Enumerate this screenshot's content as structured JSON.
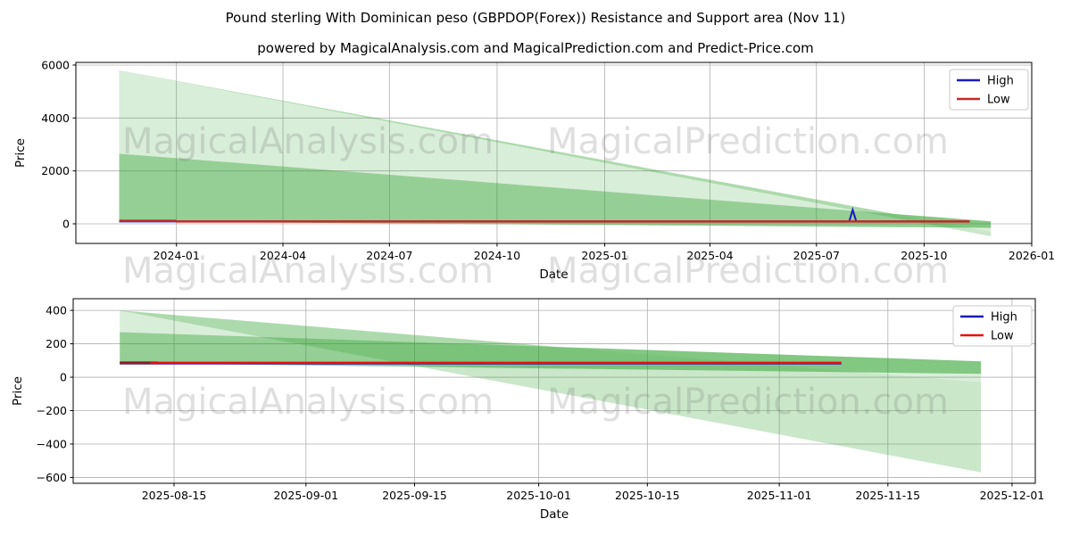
{
  "header": {
    "title": "Pound sterling With Dominican peso (GBPDOP(Forex)) Resistance and Support area (Nov 11)",
    "subtitle": "powered by MagicalAnalysis.com and MagicalPrediction.com and Predict-Price.com"
  },
  "watermark": {
    "left": "MagicalAnalysis.com",
    "right": "MagicalPrediction.com"
  },
  "colors": {
    "band_green": "#2ca02c",
    "grid": "#b0b0b0",
    "spine": "#000000",
    "high_blue": "#1a1abd",
    "low_red_top": "#c62828",
    "low_red_bottom": "#e8100f",
    "low_start_maroon": "#8b2121"
  },
  "chart_data": [
    {
      "type": "area",
      "xlabel": "Date",
      "ylabel": "Price",
      "grid": true,
      "legend": {
        "position": "upper right",
        "entries": [
          {
            "label": "High",
            "color": "#1a1abd"
          },
          {
            "label": "Low",
            "color": "#c62828"
          }
        ]
      },
      "xlim": [
        "2023-10-07",
        "2026-01-01"
      ],
      "ylim": [
        -741,
        6100
      ],
      "x_ticks": [
        {
          "label": "2024-01",
          "date": "2024-01-01"
        },
        {
          "label": "2024-04",
          "date": "2024-04-01"
        },
        {
          "label": "2024-07",
          "date": "2024-07-01"
        },
        {
          "label": "2024-10",
          "date": "2024-10-01"
        },
        {
          "label": "2025-01",
          "date": "2025-01-01"
        },
        {
          "label": "2025-04",
          "date": "2025-04-01"
        },
        {
          "label": "2025-07",
          "date": "2025-07-01"
        },
        {
          "label": "2025-10",
          "date": "2025-10-01"
        },
        {
          "label": "2026-01",
          "date": "2026-01-01"
        }
      ],
      "y_ticks": [
        {
          "label": "0",
          "value": 0
        },
        {
          "label": "2000",
          "value": 2000
        },
        {
          "label": "4000",
          "value": 4000
        },
        {
          "label": "6000",
          "value": 6000
        }
      ],
      "bands": [
        {
          "name": "resistance-outer-light",
          "color": "#2ca02c",
          "opacity": 0.18,
          "points": [
            [
              "2023-11-13",
              5800
            ],
            [
              "2025-11-27",
              -300
            ],
            [
              "2025-11-27",
              90
            ],
            [
              "2023-11-13",
              2650
            ]
          ]
        },
        {
          "name": "resistance-outer-wedge",
          "color": "#2ca02c",
          "opacity": 0.25,
          "points": [
            [
              "2023-11-13",
              5800
            ],
            [
              "2025-11-27",
              -470
            ],
            [
              "2025-11-27",
              -300
            ]
          ]
        },
        {
          "name": "support-inner-dark",
          "color": "#2ca02c",
          "opacity": 0.5,
          "points": [
            [
              "2023-11-13",
              2650
            ],
            [
              "2025-11-27",
              90
            ],
            [
              "2025-11-27",
              -150
            ],
            [
              "2023-11-13",
              90
            ]
          ]
        }
      ],
      "series": [
        {
          "name": "High",
          "color": "#1a1abd",
          "points": [
            [
              "2023-11-13",
              88
            ],
            [
              "2025-07-29",
              88
            ],
            [
              "2025-08-01",
              530
            ],
            [
              "2025-08-04",
              88
            ],
            [
              "2025-11-09",
              88
            ]
          ]
        },
        {
          "name": "Low",
          "color": "#c62828",
          "points": [
            [
              "2023-11-13",
              115
            ],
            [
              "2023-12-31",
              115
            ],
            [
              "2024-01-01",
              88
            ],
            [
              "2025-11-09",
              88
            ]
          ]
        }
      ]
    },
    {
      "type": "area",
      "xlabel": "Date",
      "ylabel": "Price",
      "grid": true,
      "legend": {
        "position": "upper right",
        "entries": [
          {
            "label": "High",
            "color": "#1a1abd"
          },
          {
            "label": "Low",
            "color": "#e8100f"
          }
        ]
      },
      "xlim": [
        "2025-08-02",
        "2025-12-04"
      ],
      "ylim": [
        -635,
        470
      ],
      "x_ticks": [
        {
          "label": "2025-08-15",
          "date": "2025-08-15"
        },
        {
          "label": "2025-09-01",
          "date": "2025-09-01"
        },
        {
          "label": "2025-09-15",
          "date": "2025-09-15"
        },
        {
          "label": "2025-10-01",
          "date": "2025-10-01"
        },
        {
          "label": "2025-10-15",
          "date": "2025-10-15"
        },
        {
          "label": "2025-11-01",
          "date": "2025-11-01"
        },
        {
          "label": "2025-11-15",
          "date": "2025-11-15"
        },
        {
          "label": "2025-12-01",
          "date": "2025-12-01"
        }
      ],
      "y_ticks": [
        {
          "label": "−600",
          "value": -600
        },
        {
          "label": "−400",
          "value": -400
        },
        {
          "label": "−200",
          "value": -200
        },
        {
          "label": "0",
          "value": 0
        },
        {
          "label": "200",
          "value": 200
        },
        {
          "label": "400",
          "value": 400
        }
      ],
      "bands": [
        {
          "name": "resistance-outer-light",
          "color": "#2ca02c",
          "opacity": 0.18,
          "points": [
            [
              "2025-08-08",
              400
            ],
            [
              "2025-11-27",
              -30
            ],
            [
              "2025-11-27",
              95
            ],
            [
              "2025-08-08",
              270
            ]
          ]
        },
        {
          "name": "resistance-outer-wedge",
          "color": "#2ca02c",
          "opacity": 0.25,
          "points": [
            [
              "2025-08-08",
              400
            ],
            [
              "2025-11-27",
              -570
            ],
            [
              "2025-11-27",
              -30
            ]
          ]
        },
        {
          "name": "support-inner-dark",
          "color": "#2ca02c",
          "opacity": 0.5,
          "points": [
            [
              "2025-08-08",
              270
            ],
            [
              "2025-11-27",
              95
            ],
            [
              "2025-11-27",
              20
            ],
            [
              "2025-08-08",
              85
            ]
          ]
        }
      ],
      "series": [
        {
          "name": "High",
          "color": "#1a1abd",
          "points": [
            [
              "2025-08-08",
              82
            ],
            [
              "2025-11-09",
              82
            ]
          ]
        },
        {
          "name": "Low-start",
          "color": "#8b2121",
          "points": [
            [
              "2025-08-08",
              86
            ],
            [
              "2025-08-13",
              86
            ]
          ]
        },
        {
          "name": "Low",
          "color": "#e8100f",
          "points": [
            [
              "2025-08-12",
              86
            ],
            [
              "2025-11-09",
              86
            ]
          ]
        }
      ]
    }
  ]
}
